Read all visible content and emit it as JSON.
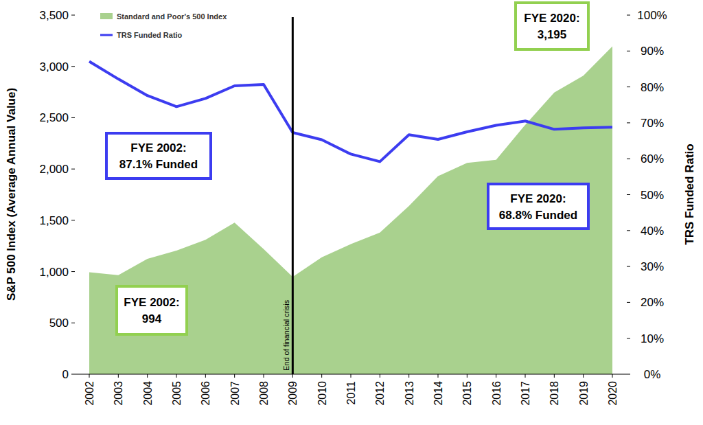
{
  "chart_data": {
    "type": "combo",
    "categories": [
      "2002",
      "2003",
      "2004",
      "2005",
      "2006",
      "2007",
      "2008",
      "2009",
      "2010",
      "2011",
      "2012",
      "2013",
      "2014",
      "2015",
      "2016",
      "2017",
      "2018",
      "2019",
      "2020"
    ],
    "series": [
      {
        "name": "Standard and Poor's 500 Index",
        "type": "area",
        "color": "#a9d18e",
        "values": [
          994,
          965,
          1125,
          1205,
          1310,
          1477,
          1220,
          948,
          1140,
          1268,
          1380,
          1640,
          1930,
          2060,
          2090,
          2430,
          2745,
          2910,
          3195
        ]
      },
      {
        "name": "TRS Funded Ratio",
        "type": "line",
        "color": "#3c3cf0",
        "axis": "y2",
        "values": [
          87.1,
          82.2,
          77.6,
          74.5,
          76.8,
          80.3,
          80.7,
          67.3,
          65.3,
          61.3,
          59.2,
          66.7,
          65.4,
          67.5,
          69.3,
          70.5,
          68.2,
          68.6,
          68.8
        ]
      }
    ],
    "y_label": "S&P 500 Index (Average Annual Value)",
    "y2_label": "TRS Funded Ratio",
    "ylim": [
      0,
      3500
    ],
    "yticks": [
      0,
      500,
      {
        "value": 1000,
        "label": "1,000"
      },
      {
        "value": 1500,
        "label": "1,500"
      },
      {
        "value": 2000,
        "label": "2,000"
      },
      {
        "value": 2500,
        "label": "2,500"
      },
      {
        "value": 3000,
        "label": "3,000"
      },
      {
        "value": 3500,
        "label": "3,500"
      }
    ],
    "y2lim": [
      0,
      100
    ],
    "y2ticks": [
      {
        "value": 0,
        "label": "0%"
      },
      {
        "value": 10,
        "label": "10%"
      },
      {
        "value": 20,
        "label": "20%"
      },
      {
        "value": 30,
        "label": "30%"
      },
      {
        "value": 40,
        "label": "40%"
      },
      {
        "value": 50,
        "label": "50%"
      },
      {
        "value": 60,
        "label": "60%"
      },
      {
        "value": 70,
        "label": "70%"
      },
      {
        "value": 80,
        "label": "80%"
      },
      {
        "value": 90,
        "label": "90%"
      },
      {
        "value": 100,
        "label": "100%"
      }
    ],
    "legend": "upper left",
    "annotations": [
      {
        "text": "End of financial crisis",
        "x": "2009",
        "color": "#000000"
      },
      {
        "lines": [
          "FYE 2002:",
          "87.1% Funded"
        ],
        "color": "#3c3cf0"
      },
      {
        "lines": [
          "FYE 2020:",
          "68.8% Funded"
        ],
        "color": "#3c3cf0"
      },
      {
        "lines": [
          "FYE 2002:",
          "994"
        ],
        "color": "#92d050"
      },
      {
        "lines": [
          "FYE 2020:",
          "3,195"
        ],
        "color": "#92d050"
      }
    ]
  }
}
